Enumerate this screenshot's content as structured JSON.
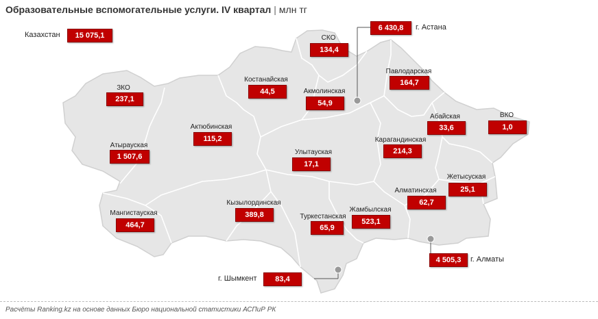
{
  "title": {
    "main": "Образовательные вспомогательные услуги. IV квартал",
    "separator": "|",
    "unit": "млн тг"
  },
  "country": {
    "name": "Казахстан",
    "value": "15 075,1"
  },
  "regions": [
    {
      "name": "СКО",
      "value": "134,4"
    },
    {
      "name": "Павлодарская",
      "value": "164,7"
    },
    {
      "name": "Костанайская",
      "value": "44,5"
    },
    {
      "name": "Акмолинская",
      "value": "54,9"
    },
    {
      "name": "ЗКО",
      "value": "237,1"
    },
    {
      "name": "Актюбинская",
      "value": "115,2"
    },
    {
      "name": "Абайская",
      "value": "33,6"
    },
    {
      "name": "ВКО",
      "value": "1,0"
    },
    {
      "name": "Атырауская",
      "value": "1 507,6"
    },
    {
      "name": "Карагандинская",
      "value": "214,3"
    },
    {
      "name": "Улытауская",
      "value": "17,1"
    },
    {
      "name": "Жетысуская",
      "value": "25,1"
    },
    {
      "name": "Алматинская",
      "value": "62,7"
    },
    {
      "name": "Мангистауская",
      "value": "464,7"
    },
    {
      "name": "Кызылординская",
      "value": "389,8"
    },
    {
      "name": "Жамбылская",
      "value": "523,1"
    },
    {
      "name": "Туркестанская",
      "value": "65,9"
    }
  ],
  "cities": [
    {
      "name": "г. Астана",
      "value": "6 430,8"
    },
    {
      "name": "г. Алматы",
      "value": "4 505,3"
    },
    {
      "name": "г. Шымкент",
      "value": "83,4"
    }
  ],
  "footer": "Расчёты Ranking.kz на основе данных Бюро национальной статистики АСПиР РК",
  "colors": {
    "value_box": "#c00000",
    "map_fill": "#e6e6e6",
    "region_border": "#ffffff"
  }
}
